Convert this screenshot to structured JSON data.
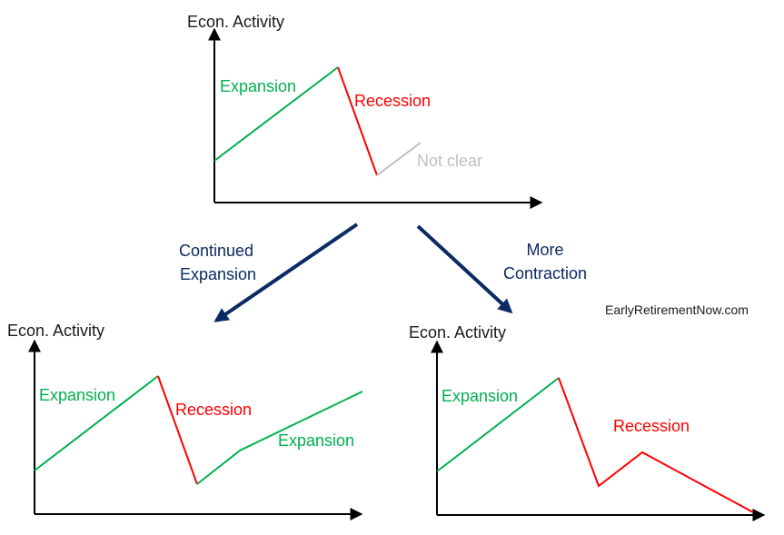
{
  "colors": {
    "axis": "#000000",
    "expansion": "#00b050",
    "recession": "#ff0000",
    "unclear": "#bfbfbf",
    "transition_arrow": "#0c2a63",
    "text": "#1a1a1a"
  },
  "top": {
    "ylabel": "Econ. Activity",
    "expansion_label": "Expansion",
    "recession_label": "Recession",
    "unclear_label": "Not clear"
  },
  "transitions": {
    "left_label_line1": "Continued",
    "left_label_line2": "Expansion",
    "right_label_line1": "More",
    "right_label_line2": "Contraction"
  },
  "watermark": "EarlyRetirementNow.com",
  "bottom_left": {
    "ylabel": "Econ. Activity",
    "expansion_label": "Expansion",
    "recession_label": "Recession",
    "expansion_label_2": "Expansion"
  },
  "bottom_right": {
    "ylabel": "Econ. Activity",
    "expansion_label": "Expansion",
    "recession_label": "Recession"
  }
}
